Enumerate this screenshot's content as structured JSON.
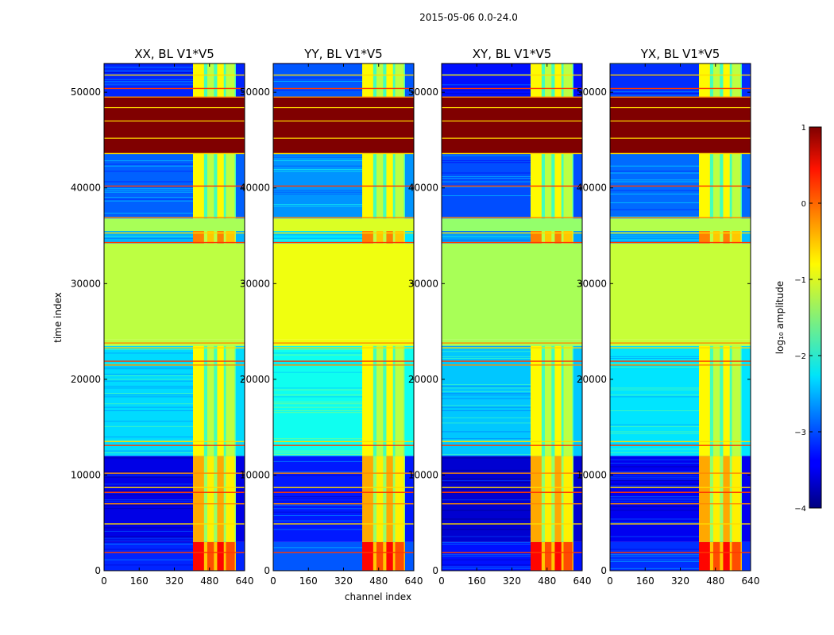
{
  "suptitle": "2015-05-06 0.0-24.0",
  "chart_data": {
    "type": "heatmap",
    "xlabel": "channel index",
    "ylabel": "time index",
    "xlim": [
      0,
      640
    ],
    "ylim": [
      0,
      53000
    ],
    "x_ticks": [
      0,
      160,
      320,
      480,
      640
    ],
    "y_ticks": [
      0,
      10000,
      20000,
      30000,
      40000,
      50000
    ],
    "colorbar": {
      "label": "log₁₀ amplitude",
      "range": [
        -4,
        1
      ],
      "ticks": [
        1,
        0,
        -1,
        -2,
        -3,
        -4
      ],
      "tick_labels": [
        "1",
        "0",
        "−1",
        "−2",
        "−3",
        "−4"
      ],
      "colormap": "jet"
    },
    "panels": [
      {
        "title": "XX, BL V1*V5",
        "pol": "XX"
      },
      {
        "title": "YY, BL V1*V5",
        "pol": "YY"
      },
      {
        "title": "XY, BL V1*V5",
        "pol": "XY"
      },
      {
        "title": "YX, BL V1*V5",
        "pol": "YX"
      }
    ],
    "band_channel_range": [
      405,
      600
    ],
    "band_strip_channels": [
      [
        405,
        455
      ],
      [
        470,
        500
      ],
      [
        515,
        545
      ],
      [
        555,
        595
      ]
    ],
    "time_blocks": [
      {
        "t0": 0,
        "t1": 3000,
        "bg": -3.2,
        "band": 0.2,
        "note": "bright band"
      },
      {
        "t0": 3000,
        "t1": 12000,
        "bg": -3.5,
        "band": -0.6
      },
      {
        "t0": 12000,
        "t1": 23500,
        "bg": -2.3,
        "band": -1.0
      },
      {
        "t0": 23500,
        "t1": 24200,
        "bg": -1.2,
        "band": -1.2
      },
      {
        "t0": 24200,
        "t1": 34200,
        "bg": -1.2,
        "band": -1.2,
        "note": "flat block"
      },
      {
        "t0": 34200,
        "t1": 35500,
        "bg": -2.5,
        "band": -0.4
      },
      {
        "t0": 35500,
        "t1": 36800,
        "bg": -1.3,
        "band": -1.3
      },
      {
        "t0": 36800,
        "t1": 43600,
        "bg": -2.9,
        "band": -1.0
      },
      {
        "t0": 43600,
        "t1": 49500,
        "bg": 1.0,
        "band": 1.0,
        "note": "saturated block"
      },
      {
        "t0": 49500,
        "t1": 53000,
        "bg": -3.2,
        "band": -1.0
      }
    ],
    "flag_lines_time": [
      1900,
      4900,
      7000,
      8200,
      8700,
      10200,
      13100,
      13500,
      21500,
      21900,
      23300,
      23800,
      34300,
      35300,
      36900,
      40200,
      43600,
      49500,
      50400,
      51800
    ]
  }
}
